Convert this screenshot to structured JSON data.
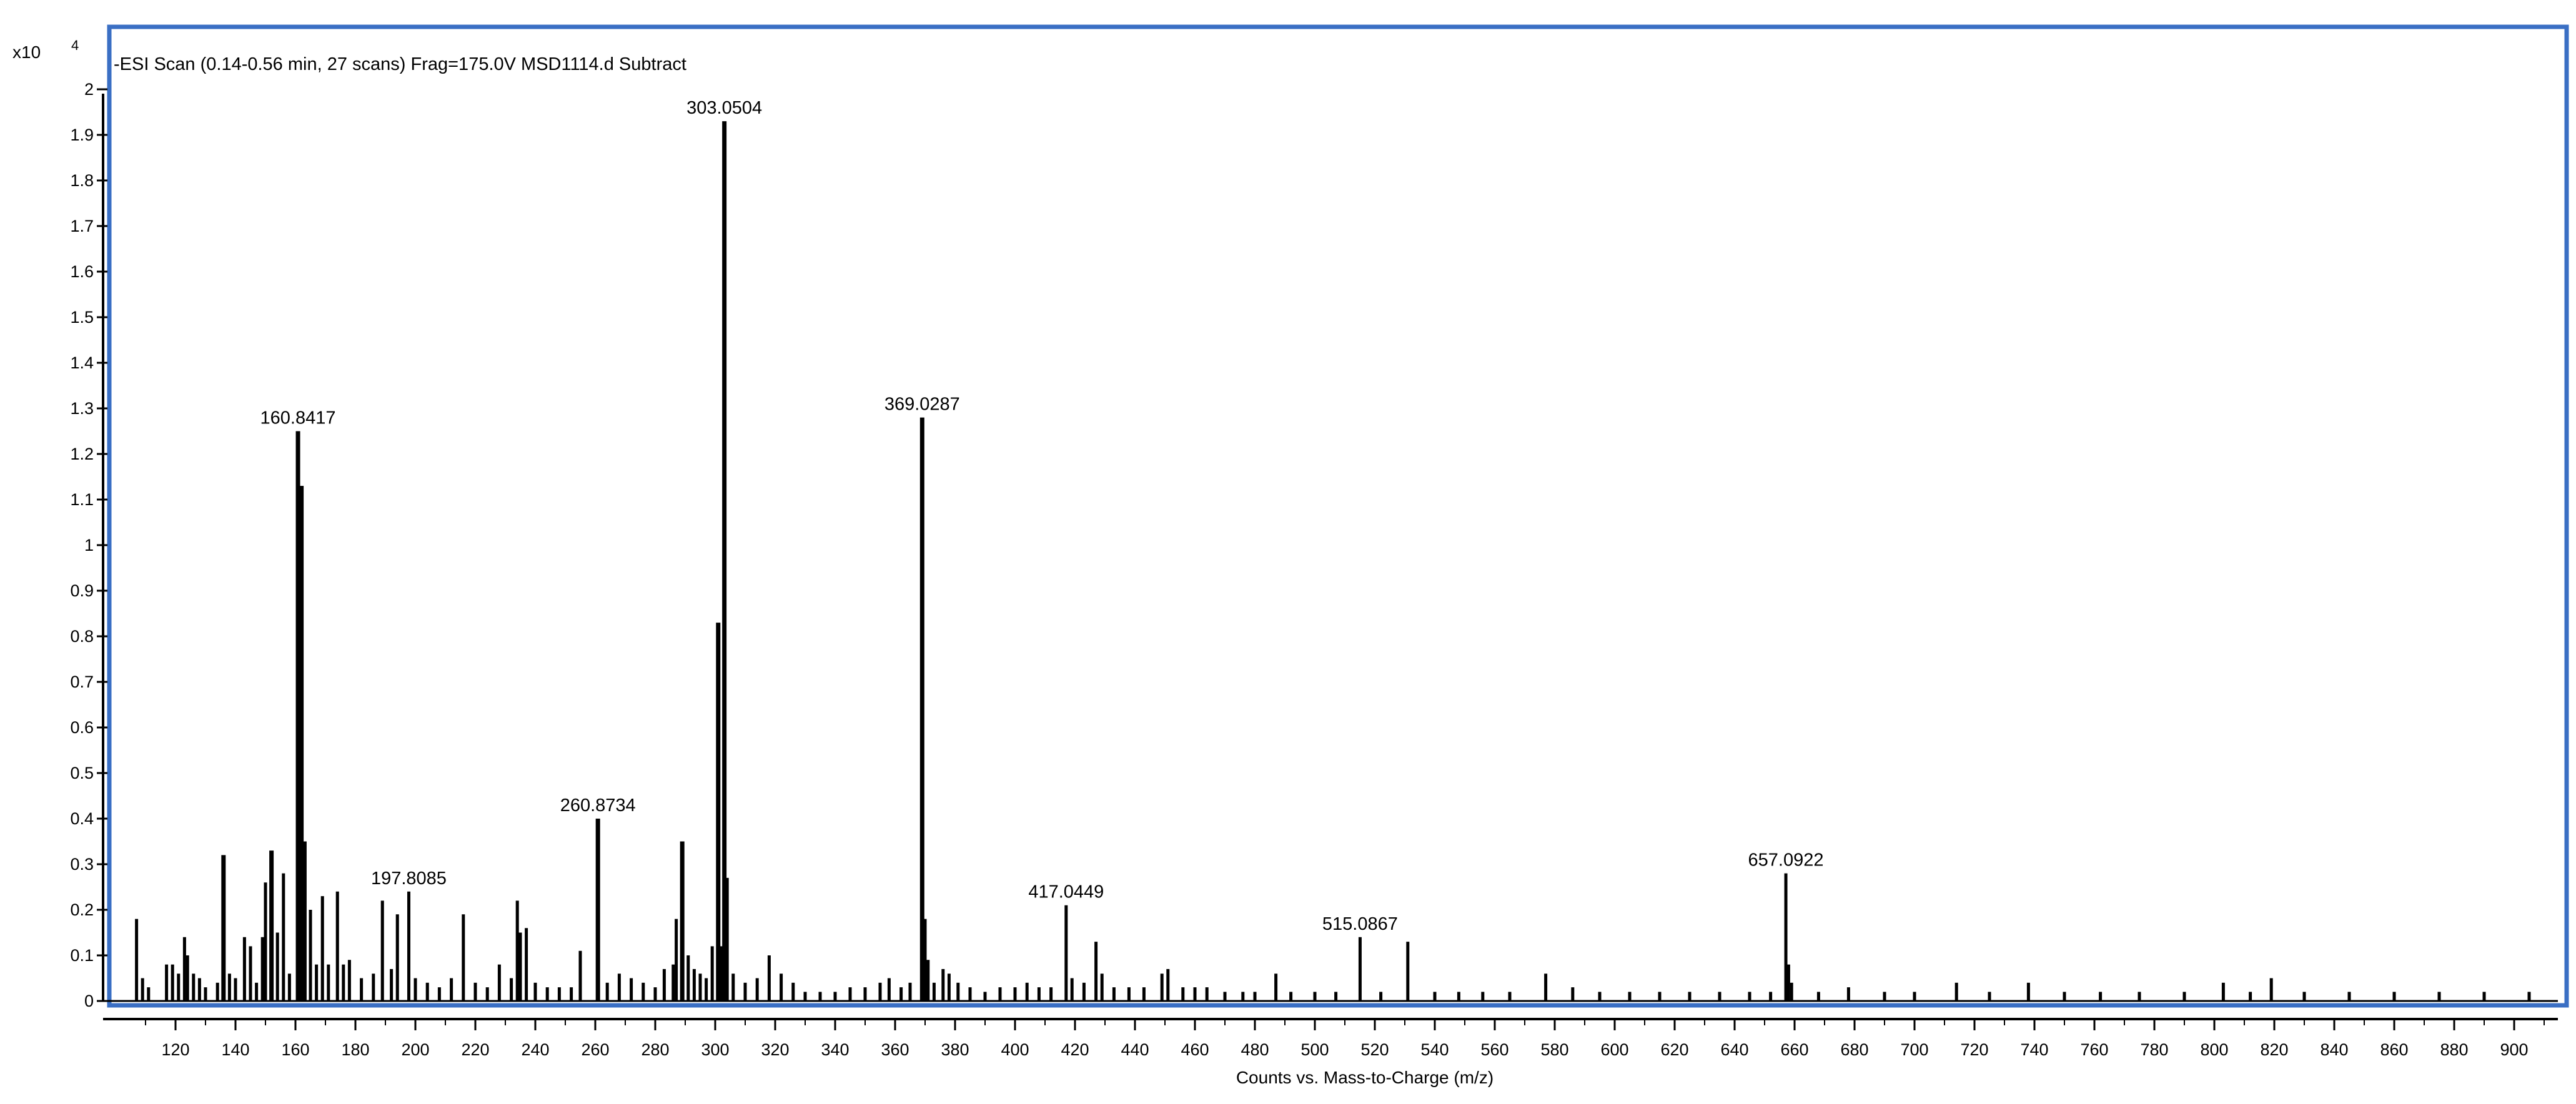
{
  "chart_data": {
    "type": "bar",
    "title": "-ESI Scan (0.14-0.56 min, 27 scans) Frag=175.0V MSD1114.d  Subtract",
    "xlabel": "Counts vs. Mass-to-Charge (m/z)",
    "ylabel": "",
    "y_multiplier_label": "x10",
    "y_multiplier_exponent": "4",
    "xlim": [
      100,
      912
    ],
    "ylim": [
      0,
      2.1
    ],
    "x_ticks": [
      120,
      140,
      160,
      180,
      200,
      220,
      240,
      260,
      280,
      300,
      320,
      340,
      360,
      380,
      400,
      420,
      440,
      460,
      480,
      500,
      520,
      540,
      560,
      580,
      600,
      620,
      640,
      660,
      680,
      700,
      720,
      740,
      760,
      780,
      800,
      820,
      840,
      860,
      880,
      900
    ],
    "y_ticks": [
      {
        "value": 0,
        "label": "0"
      },
      {
        "value": 0.1,
        "label": "0.1"
      },
      {
        "value": 0.2,
        "label": "0.2"
      },
      {
        "value": 0.3,
        "label": "0.3"
      },
      {
        "value": 0.4,
        "label": "0.4"
      },
      {
        "value": 0.5,
        "label": "0.5"
      },
      {
        "value": 0.6,
        "label": "0.6"
      },
      {
        "value": 0.7,
        "label": "0.7"
      },
      {
        "value": 0.8,
        "label": "0.8"
      },
      {
        "value": 0.9,
        "label": "0.9"
      },
      {
        "value": 1,
        "label": "1"
      },
      {
        "value": 1.1,
        "label": "1.1"
      },
      {
        "value": 1.2,
        "label": "1.2"
      },
      {
        "value": 1.3,
        "label": "1.3"
      },
      {
        "value": 1.4,
        "label": "1.4"
      },
      {
        "value": 1.5,
        "label": "1.5"
      },
      {
        "value": 1.6,
        "label": "1.6"
      },
      {
        "value": 1.7,
        "label": "1.7"
      },
      {
        "value": 1.8,
        "label": "1.8"
      },
      {
        "value": 1.9,
        "label": "1.9"
      },
      {
        "value": 2,
        "label": "2"
      }
    ],
    "peaks": [
      {
        "mz": 107,
        "i": 0.18
      },
      {
        "mz": 109,
        "i": 0.05
      },
      {
        "mz": 111,
        "i": 0.03
      },
      {
        "mz": 117,
        "i": 0.08
      },
      {
        "mz": 119,
        "i": 0.08
      },
      {
        "mz": 121,
        "i": 0.06
      },
      {
        "mz": 123,
        "i": 0.14
      },
      {
        "mz": 124,
        "i": 0.1
      },
      {
        "mz": 126,
        "i": 0.06
      },
      {
        "mz": 128,
        "i": 0.05
      },
      {
        "mz": 130,
        "i": 0.03
      },
      {
        "mz": 134,
        "i": 0.04
      },
      {
        "mz": 136,
        "i": 0.32
      },
      {
        "mz": 138,
        "i": 0.06
      },
      {
        "mz": 140,
        "i": 0.05
      },
      {
        "mz": 143,
        "i": 0.14
      },
      {
        "mz": 145,
        "i": 0.12
      },
      {
        "mz": 147,
        "i": 0.04
      },
      {
        "mz": 149,
        "i": 0.14
      },
      {
        "mz": 150,
        "i": 0.26
      },
      {
        "mz": 152,
        "i": 0.33
      },
      {
        "mz": 154,
        "i": 0.15
      },
      {
        "mz": 156,
        "i": 0.28
      },
      {
        "mz": 158,
        "i": 0.06
      },
      {
        "mz": 160.8417,
        "i": 1.25,
        "label": "160.8417"
      },
      {
        "mz": 162,
        "i": 1.13
      },
      {
        "mz": 163,
        "i": 0.35
      },
      {
        "mz": 165,
        "i": 0.2
      },
      {
        "mz": 167,
        "i": 0.08
      },
      {
        "mz": 169,
        "i": 0.23
      },
      {
        "mz": 171,
        "i": 0.08
      },
      {
        "mz": 174,
        "i": 0.24
      },
      {
        "mz": 176,
        "i": 0.08
      },
      {
        "mz": 178,
        "i": 0.09
      },
      {
        "mz": 182,
        "i": 0.05
      },
      {
        "mz": 186,
        "i": 0.06
      },
      {
        "mz": 189,
        "i": 0.22
      },
      {
        "mz": 192,
        "i": 0.07
      },
      {
        "mz": 194,
        "i": 0.19
      },
      {
        "mz": 197.8085,
        "i": 0.24,
        "label": "197.8085"
      },
      {
        "mz": 200,
        "i": 0.05
      },
      {
        "mz": 204,
        "i": 0.04
      },
      {
        "mz": 208,
        "i": 0.03
      },
      {
        "mz": 212,
        "i": 0.05
      },
      {
        "mz": 216,
        "i": 0.19
      },
      {
        "mz": 220,
        "i": 0.04
      },
      {
        "mz": 224,
        "i": 0.03
      },
      {
        "mz": 228,
        "i": 0.08
      },
      {
        "mz": 232,
        "i": 0.05
      },
      {
        "mz": 234,
        "i": 0.22
      },
      {
        "mz": 235,
        "i": 0.15
      },
      {
        "mz": 237,
        "i": 0.16
      },
      {
        "mz": 240,
        "i": 0.04
      },
      {
        "mz": 244,
        "i": 0.03
      },
      {
        "mz": 248,
        "i": 0.03
      },
      {
        "mz": 252,
        "i": 0.03
      },
      {
        "mz": 255,
        "i": 0.11
      },
      {
        "mz": 260.8734,
        "i": 0.4,
        "label": "260.8734"
      },
      {
        "mz": 264,
        "i": 0.04
      },
      {
        "mz": 268,
        "i": 0.06
      },
      {
        "mz": 272,
        "i": 0.05
      },
      {
        "mz": 276,
        "i": 0.04
      },
      {
        "mz": 280,
        "i": 0.03
      },
      {
        "mz": 283,
        "i": 0.07
      },
      {
        "mz": 286,
        "i": 0.08
      },
      {
        "mz": 287,
        "i": 0.18
      },
      {
        "mz": 289,
        "i": 0.35
      },
      {
        "mz": 291,
        "i": 0.1
      },
      {
        "mz": 293,
        "i": 0.07
      },
      {
        "mz": 295,
        "i": 0.06
      },
      {
        "mz": 297,
        "i": 0.05
      },
      {
        "mz": 299,
        "i": 0.12
      },
      {
        "mz": 301,
        "i": 0.83
      },
      {
        "mz": 302,
        "i": 0.12
      },
      {
        "mz": 303.0504,
        "i": 1.93,
        "label": "303.0504"
      },
      {
        "mz": 304,
        "i": 0.27
      },
      {
        "mz": 306,
        "i": 0.06
      },
      {
        "mz": 310,
        "i": 0.04
      },
      {
        "mz": 314,
        "i": 0.05
      },
      {
        "mz": 318,
        "i": 0.1
      },
      {
        "mz": 322,
        "i": 0.06
      },
      {
        "mz": 326,
        "i": 0.04
      },
      {
        "mz": 330,
        "i": 0.02
      },
      {
        "mz": 335,
        "i": 0.02
      },
      {
        "mz": 340,
        "i": 0.02
      },
      {
        "mz": 345,
        "i": 0.03
      },
      {
        "mz": 350,
        "i": 0.03
      },
      {
        "mz": 355,
        "i": 0.04
      },
      {
        "mz": 358,
        "i": 0.05
      },
      {
        "mz": 362,
        "i": 0.03
      },
      {
        "mz": 365,
        "i": 0.04
      },
      {
        "mz": 369.0287,
        "i": 1.28,
        "label": "369.0287"
      },
      {
        "mz": 370,
        "i": 0.18
      },
      {
        "mz": 371,
        "i": 0.09
      },
      {
        "mz": 373,
        "i": 0.04
      },
      {
        "mz": 376,
        "i": 0.07
      },
      {
        "mz": 378,
        "i": 0.06
      },
      {
        "mz": 381,
        "i": 0.04
      },
      {
        "mz": 385,
        "i": 0.03
      },
      {
        "mz": 390,
        "i": 0.02
      },
      {
        "mz": 395,
        "i": 0.03
      },
      {
        "mz": 400,
        "i": 0.03
      },
      {
        "mz": 404,
        "i": 0.04
      },
      {
        "mz": 408,
        "i": 0.03
      },
      {
        "mz": 412,
        "i": 0.03
      },
      {
        "mz": 417.0449,
        "i": 0.21,
        "label": "417.0449"
      },
      {
        "mz": 419,
        "i": 0.05
      },
      {
        "mz": 423,
        "i": 0.04
      },
      {
        "mz": 427,
        "i": 0.13
      },
      {
        "mz": 429,
        "i": 0.06
      },
      {
        "mz": 433,
        "i": 0.03
      },
      {
        "mz": 438,
        "i": 0.03
      },
      {
        "mz": 443,
        "i": 0.03
      },
      {
        "mz": 449,
        "i": 0.06
      },
      {
        "mz": 451,
        "i": 0.07
      },
      {
        "mz": 456,
        "i": 0.03
      },
      {
        "mz": 460,
        "i": 0.03
      },
      {
        "mz": 464,
        "i": 0.03
      },
      {
        "mz": 470,
        "i": 0.02
      },
      {
        "mz": 476,
        "i": 0.02
      },
      {
        "mz": 480,
        "i": 0.02
      },
      {
        "mz": 487,
        "i": 0.06
      },
      {
        "mz": 492,
        "i": 0.02
      },
      {
        "mz": 500,
        "i": 0.02
      },
      {
        "mz": 507,
        "i": 0.02
      },
      {
        "mz": 515.0867,
        "i": 0.14,
        "label": "515.0867"
      },
      {
        "mz": 522,
        "i": 0.02
      },
      {
        "mz": 531,
        "i": 0.13
      },
      {
        "mz": 540,
        "i": 0.02
      },
      {
        "mz": 548,
        "i": 0.02
      },
      {
        "mz": 556,
        "i": 0.02
      },
      {
        "mz": 565,
        "i": 0.02
      },
      {
        "mz": 577,
        "i": 0.06
      },
      {
        "mz": 586,
        "i": 0.03
      },
      {
        "mz": 595,
        "i": 0.02
      },
      {
        "mz": 605,
        "i": 0.02
      },
      {
        "mz": 615,
        "i": 0.02
      },
      {
        "mz": 625,
        "i": 0.02
      },
      {
        "mz": 635,
        "i": 0.02
      },
      {
        "mz": 645,
        "i": 0.02
      },
      {
        "mz": 652,
        "i": 0.02
      },
      {
        "mz": 657.0922,
        "i": 0.28,
        "label": "657.0922"
      },
      {
        "mz": 658,
        "i": 0.08
      },
      {
        "mz": 659,
        "i": 0.04
      },
      {
        "mz": 668,
        "i": 0.02
      },
      {
        "mz": 678,
        "i": 0.03
      },
      {
        "mz": 690,
        "i": 0.02
      },
      {
        "mz": 700,
        "i": 0.02
      },
      {
        "mz": 714,
        "i": 0.04
      },
      {
        "mz": 725,
        "i": 0.02
      },
      {
        "mz": 738,
        "i": 0.04
      },
      {
        "mz": 750,
        "i": 0.02
      },
      {
        "mz": 762,
        "i": 0.02
      },
      {
        "mz": 775,
        "i": 0.02
      },
      {
        "mz": 790,
        "i": 0.02
      },
      {
        "mz": 803,
        "i": 0.04
      },
      {
        "mz": 812,
        "i": 0.02
      },
      {
        "mz": 819,
        "i": 0.05
      },
      {
        "mz": 830,
        "i": 0.02
      },
      {
        "mz": 845,
        "i": 0.02
      },
      {
        "mz": 860,
        "i": 0.02
      },
      {
        "mz": 875,
        "i": 0.02
      },
      {
        "mz": 890,
        "i": 0.02
      },
      {
        "mz": 905,
        "i": 0.02
      }
    ],
    "frame_color": "#3a6fc4",
    "peak_color": "#000000",
    "grid": false
  }
}
